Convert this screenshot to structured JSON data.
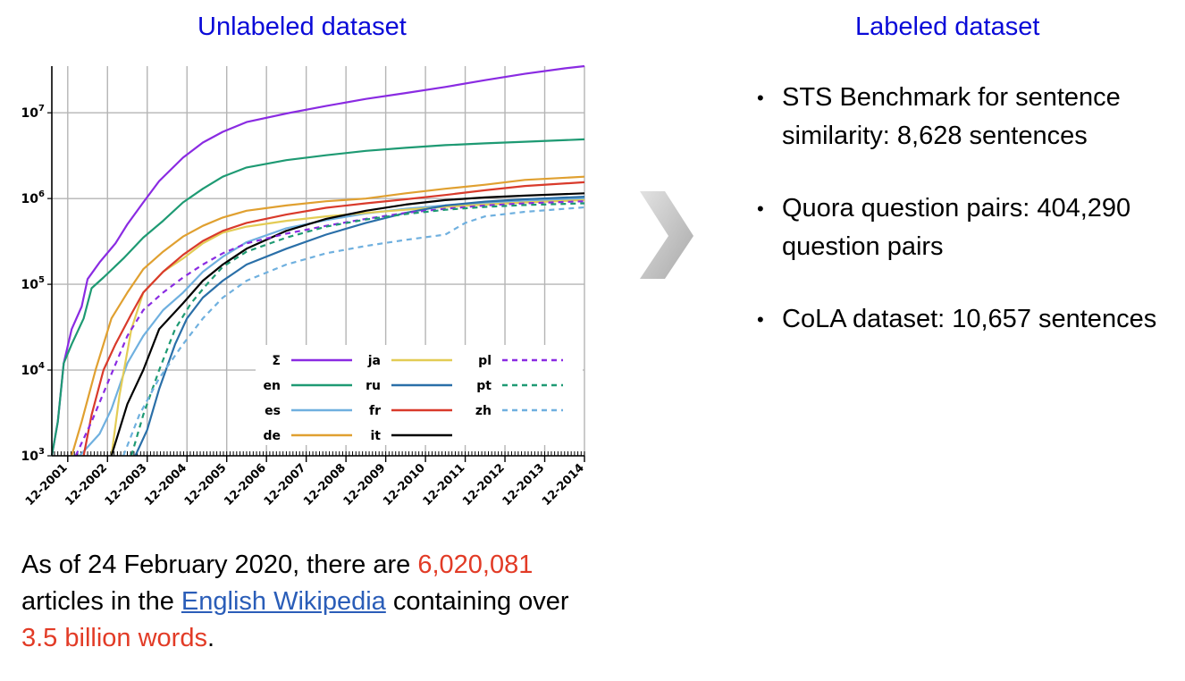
{
  "headings": {
    "left": "Unlabeled dataset",
    "right": "Labeled dataset"
  },
  "chart_data": {
    "type": "line",
    "yscale": "log",
    "ylim": [
      1000,
      35000000
    ],
    "y_ticks": [
      {
        "value": 1000,
        "base": "10",
        "exp": "3"
      },
      {
        "value": 10000,
        "base": "10",
        "exp": "4"
      },
      {
        "value": 100000,
        "base": "10",
        "exp": "5"
      },
      {
        "value": 1000000,
        "base": "10",
        "exp": "6"
      },
      {
        "value": 10000000,
        "base": "10",
        "exp": "7"
      }
    ],
    "x_range": [
      2001.6,
      2015.0
    ],
    "x_tick_labels": [
      "12-2001",
      "12-2002",
      "12-2003",
      "12-2004",
      "12-2005",
      "12-2006",
      "12-2007",
      "12-2008",
      "12-2009",
      "12-2010",
      "12-2011",
      "12-2012",
      "12-2013",
      "12-2014"
    ],
    "series": [
      {
        "name": "Σ",
        "color": "#8a2be2",
        "dash": "solid",
        "points": [
          [
            2001.6,
            1000
          ],
          [
            2001.75,
            2500
          ],
          [
            2001.9,
            12000
          ],
          [
            2002.1,
            30000
          ],
          [
            2002.35,
            55000
          ],
          [
            2002.5,
            115000
          ],
          [
            2002.8,
            180000
          ],
          [
            2003.2,
            300000
          ],
          [
            2003.5,
            500000
          ],
          [
            2003.9,
            900000
          ],
          [
            2004.3,
            1600000
          ],
          [
            2004.9,
            3000000
          ],
          [
            2005.4,
            4500000
          ],
          [
            2005.9,
            6000000
          ],
          [
            2006.5,
            7800000
          ],
          [
            2007.5,
            9800000
          ],
          [
            2008.5,
            12000000
          ],
          [
            2009.5,
            14500000
          ],
          [
            2010.5,
            17000000
          ],
          [
            2011.5,
            20000000
          ],
          [
            2012.5,
            24000000
          ],
          [
            2013.5,
            28500000
          ],
          [
            2014.5,
            33000000
          ],
          [
            2015.0,
            35000000
          ]
        ]
      },
      {
        "name": "en",
        "color": "#1e9a73",
        "dash": "solid",
        "points": [
          [
            2001.6,
            1000
          ],
          [
            2001.75,
            2500
          ],
          [
            2001.9,
            12000
          ],
          [
            2002.1,
            20000
          ],
          [
            2002.4,
            40000
          ],
          [
            2002.6,
            90000
          ],
          [
            2002.9,
            120000
          ],
          [
            2003.4,
            200000
          ],
          [
            2003.9,
            350000
          ],
          [
            2004.4,
            550000
          ],
          [
            2004.9,
            900000
          ],
          [
            2005.4,
            1300000
          ],
          [
            2005.9,
            1800000
          ],
          [
            2006.5,
            2300000
          ],
          [
            2007.5,
            2800000
          ],
          [
            2008.5,
            3200000
          ],
          [
            2009.5,
            3600000
          ],
          [
            2010.5,
            3900000
          ],
          [
            2011.5,
            4200000
          ],
          [
            2012.5,
            4400000
          ],
          [
            2013.5,
            4600000
          ],
          [
            2015.0,
            4900000
          ]
        ]
      },
      {
        "name": "es",
        "color": "#6fb0df",
        "dash": "solid",
        "points": [
          [
            2002.3,
            1000
          ],
          [
            2002.8,
            1800
          ],
          [
            2003.1,
            3500
          ],
          [
            2003.5,
            12000
          ],
          [
            2003.9,
            25000
          ],
          [
            2004.4,
            50000
          ],
          [
            2004.9,
            80000
          ],
          [
            2005.4,
            140000
          ],
          [
            2005.9,
            210000
          ],
          [
            2006.5,
            310000
          ],
          [
            2007.5,
            450000
          ],
          [
            2008.5,
            560000
          ],
          [
            2009.5,
            670000
          ],
          [
            2010.5,
            760000
          ],
          [
            2011.5,
            830000
          ],
          [
            2012.5,
            880000
          ],
          [
            2013.5,
            930000
          ],
          [
            2015.0,
            1000000
          ]
        ]
      },
      {
        "name": "de",
        "color": "#e0a030",
        "dash": "solid",
        "points": [
          [
            2002.1,
            1000
          ],
          [
            2002.35,
            2500
          ],
          [
            2002.7,
            10000
          ],
          [
            2003.1,
            40000
          ],
          [
            2003.5,
            80000
          ],
          [
            2003.9,
            150000
          ],
          [
            2004.4,
            240000
          ],
          [
            2004.9,
            360000
          ],
          [
            2005.4,
            480000
          ],
          [
            2005.9,
            600000
          ],
          [
            2006.5,
            720000
          ],
          [
            2007.5,
            830000
          ],
          [
            2008.5,
            930000
          ],
          [
            2009.5,
            1000000
          ],
          [
            2010.5,
            1150000
          ],
          [
            2011.5,
            1300000
          ],
          [
            2012.5,
            1450000
          ],
          [
            2013.5,
            1650000
          ],
          [
            2015.0,
            1800000
          ]
        ]
      },
      {
        "name": "ja",
        "color": "#e3cc55",
        "dash": "solid",
        "points": [
          [
            2003.1,
            1000
          ],
          [
            2003.3,
            5000
          ],
          [
            2003.6,
            30000
          ],
          [
            2003.9,
            80000
          ],
          [
            2004.4,
            140000
          ],
          [
            2004.9,
            200000
          ],
          [
            2005.4,
            300000
          ],
          [
            2005.9,
            400000
          ],
          [
            2006.5,
            470000
          ],
          [
            2007.5,
            550000
          ],
          [
            2008.5,
            620000
          ],
          [
            2009.5,
            680000
          ],
          [
            2010.5,
            740000
          ],
          [
            2011.5,
            800000
          ],
          [
            2012.5,
            850000
          ],
          [
            2013.5,
            900000
          ],
          [
            2015.0,
            960000
          ]
        ]
      },
      {
        "name": "ru",
        "color": "#2a6fa8",
        "dash": "solid",
        "points": [
          [
            2003.7,
            1000
          ],
          [
            2004.0,
            2000
          ],
          [
            2004.3,
            6000
          ],
          [
            2004.7,
            20000
          ],
          [
            2005.0,
            40000
          ],
          [
            2005.4,
            70000
          ],
          [
            2005.9,
            110000
          ],
          [
            2006.5,
            170000
          ],
          [
            2007.5,
            260000
          ],
          [
            2008.5,
            380000
          ],
          [
            2009.5,
            520000
          ],
          [
            2010.5,
            680000
          ],
          [
            2011.5,
            830000
          ],
          [
            2012.5,
            920000
          ],
          [
            2013.5,
            980000
          ],
          [
            2015.0,
            1050000
          ]
        ]
      },
      {
        "name": "fr",
        "color": "#d93a2b",
        "dash": "solid",
        "points": [
          [
            2002.4,
            1000
          ],
          [
            2002.6,
            3000
          ],
          [
            2002.9,
            10000
          ],
          [
            2003.2,
            20000
          ],
          [
            2003.6,
            45000
          ],
          [
            2003.9,
            80000
          ],
          [
            2004.4,
            140000
          ],
          [
            2004.9,
            220000
          ],
          [
            2005.4,
            320000
          ],
          [
            2005.9,
            420000
          ],
          [
            2006.5,
            520000
          ],
          [
            2007.5,
            650000
          ],
          [
            2008.5,
            780000
          ],
          [
            2009.5,
            880000
          ],
          [
            2010.5,
            980000
          ],
          [
            2011.5,
            1100000
          ],
          [
            2012.5,
            1250000
          ],
          [
            2013.5,
            1400000
          ],
          [
            2015.0,
            1550000
          ]
        ]
      },
      {
        "name": "it",
        "color": "#000000",
        "dash": "solid",
        "points": [
          [
            2003.1,
            1000
          ],
          [
            2003.5,
            4000
          ],
          [
            2003.9,
            10000
          ],
          [
            2004.3,
            30000
          ],
          [
            2004.9,
            60000
          ],
          [
            2005.4,
            110000
          ],
          [
            2005.9,
            170000
          ],
          [
            2006.5,
            260000
          ],
          [
            2007.5,
            420000
          ],
          [
            2008.5,
            580000
          ],
          [
            2009.5,
            720000
          ],
          [
            2010.5,
            850000
          ],
          [
            2011.5,
            960000
          ],
          [
            2012.5,
            1030000
          ],
          [
            2013.5,
            1080000
          ],
          [
            2015.0,
            1150000
          ]
        ]
      },
      {
        "name": "pl",
        "color": "#8a2be2",
        "dash": "dashed",
        "points": [
          [
            2002.2,
            1000
          ],
          [
            2002.6,
            2500
          ],
          [
            2003.1,
            9000
          ],
          [
            2003.5,
            25000
          ],
          [
            2003.9,
            50000
          ],
          [
            2004.4,
            80000
          ],
          [
            2004.9,
            120000
          ],
          [
            2005.4,
            170000
          ],
          [
            2005.9,
            230000
          ],
          [
            2006.5,
            300000
          ],
          [
            2007.5,
            390000
          ],
          [
            2008.5,
            480000
          ],
          [
            2009.5,
            580000
          ],
          [
            2010.5,
            680000
          ],
          [
            2011.5,
            760000
          ],
          [
            2012.5,
            830000
          ],
          [
            2013.5,
            880000
          ],
          [
            2015.0,
            930000
          ]
        ]
      },
      {
        "name": "pt",
        "color": "#1e9a73",
        "dash": "dashed",
        "points": [
          [
            2003.6,
            1000
          ],
          [
            2003.9,
            3000
          ],
          [
            2004.3,
            10000
          ],
          [
            2004.7,
            30000
          ],
          [
            2005.1,
            60000
          ],
          [
            2005.5,
            100000
          ],
          [
            2005.9,
            160000
          ],
          [
            2006.5,
            240000
          ],
          [
            2007.5,
            350000
          ],
          [
            2008.5,
            470000
          ],
          [
            2009.5,
            570000
          ],
          [
            2010.5,
            660000
          ],
          [
            2011.5,
            740000
          ],
          [
            2012.5,
            800000
          ],
          [
            2013.5,
            840000
          ],
          [
            2015.0,
            880000
          ]
        ]
      },
      {
        "name": "zh",
        "color": "#6fb0df",
        "dash": "dashed",
        "points": [
          [
            2003.4,
            1000
          ],
          [
            2003.8,
            3000
          ],
          [
            2004.3,
            8000
          ],
          [
            2004.9,
            20000
          ],
          [
            2005.4,
            40000
          ],
          [
            2005.9,
            70000
          ],
          [
            2006.5,
            110000
          ],
          [
            2007.5,
            170000
          ],
          [
            2008.5,
            230000
          ],
          [
            2009.5,
            280000
          ],
          [
            2010.5,
            330000
          ],
          [
            2011.5,
            380000
          ],
          [
            2012.0,
            520000
          ],
          [
            2012.5,
            620000
          ],
          [
            2013.5,
            700000
          ],
          [
            2015.0,
            790000
          ]
        ]
      }
    ]
  },
  "bullets": [
    "STS Benchmark for sentence similarity: 8,628 sentences",
    "Quora question pairs: 404,290 question pairs",
    "CoLA dataset: 10,657 sentences"
  ],
  "bullet_symbol": "•",
  "caption": {
    "part1": "As of 24 February 2020, there are ",
    "articles": "6,020,081",
    "part2": " articles in the ",
    "link": "English Wikipedia",
    "part3": " containing over ",
    "words": "3.5 billion words",
    "part4": "."
  }
}
